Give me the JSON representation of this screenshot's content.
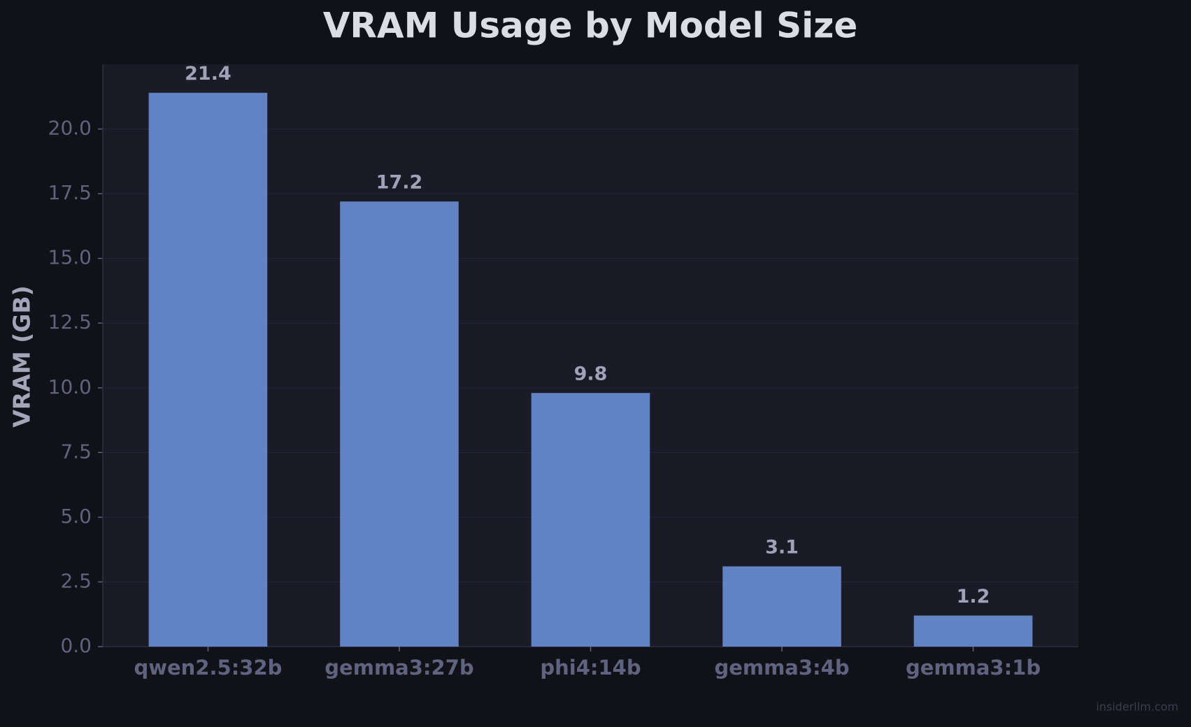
{
  "chart_data": {
    "type": "bar",
    "title": "VRAM Usage by Model Size",
    "ylabel": "VRAM (GB)",
    "categories": [
      "qwen2.5:32b",
      "gemma3:27b",
      "phi4:14b",
      "gemma3:4b",
      "gemma3:1b"
    ],
    "values": [
      21.4,
      17.2,
      9.8,
      3.1,
      1.2
    ],
    "value_labels": [
      "21.4",
      "17.2",
      "9.8",
      "3.1",
      "1.2"
    ],
    "color": "#6283c3",
    "ylim": [
      0,
      22.5
    ],
    "yticks": [
      {
        "value": 0,
        "label": "0.0"
      },
      2.5,
      {
        "value": 5,
        "label": "5.0"
      },
      7.5,
      {
        "value": 10,
        "label": "10.0"
      },
      12.5,
      {
        "value": 15,
        "label": "15.0"
      },
      17.5,
      {
        "value": 20,
        "label": "20.0"
      }
    ],
    "grid": true,
    "watermark": "insiderllm.com"
  }
}
